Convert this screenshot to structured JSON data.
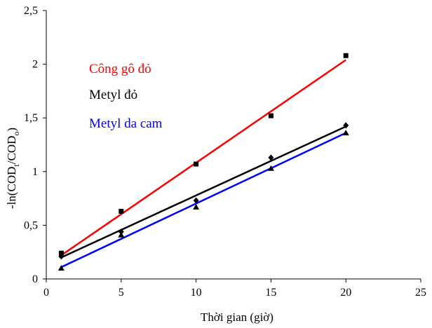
{
  "chart_data": {
    "type": "scatter",
    "xlabel": "Thời gian (giờ)",
    "ylabel": {
      "main": "-ln(COD",
      "sub_t": "t",
      "mid": "/COD",
      "sub_o": "o",
      "end": ")"
    },
    "xlim": [
      0,
      25
    ],
    "ylim": [
      0,
      2.5
    ],
    "x_ticks": [
      0,
      5,
      10,
      15,
      20,
      25
    ],
    "x_tick_labels": [
      "0",
      "5",
      "10",
      "15",
      "20",
      "25"
    ],
    "y_ticks": [
      0,
      0.5,
      1,
      1.5,
      2,
      2.5
    ],
    "y_tick_labels": [
      "0",
      "0,5",
      "1",
      "1,5",
      "2",
      "2,5"
    ],
    "grid": false,
    "legend_position": "top-left",
    "series": [
      {
        "name": "Công gô đỏ",
        "color": "#ff0000",
        "marker": "square",
        "x": [
          1,
          5,
          10,
          15,
          20
        ],
        "y": [
          0.24,
          0.63,
          1.07,
          1.52,
          2.08
        ],
        "fit": {
          "x": [
            1,
            20
          ],
          "y": [
            0.22,
            2.04
          ]
        }
      },
      {
        "name": "Metyl đỏ",
        "color": "#000000",
        "marker": "diamond",
        "x": [
          1,
          5,
          10,
          15,
          20
        ],
        "y": [
          0.21,
          0.44,
          0.73,
          1.13,
          1.43
        ],
        "fit": {
          "x": [
            1,
            20
          ],
          "y": [
            0.2,
            1.42
          ]
        }
      },
      {
        "name": "Metyl da cam",
        "color": "#0000ff",
        "marker": "triangle",
        "x": [
          1,
          5,
          10,
          15,
          20
        ],
        "y": [
          0.1,
          0.41,
          0.67,
          1.03,
          1.36
        ],
        "fit": {
          "x": [
            1,
            20
          ],
          "y": [
            0.11,
            1.36
          ]
        }
      }
    ]
  }
}
